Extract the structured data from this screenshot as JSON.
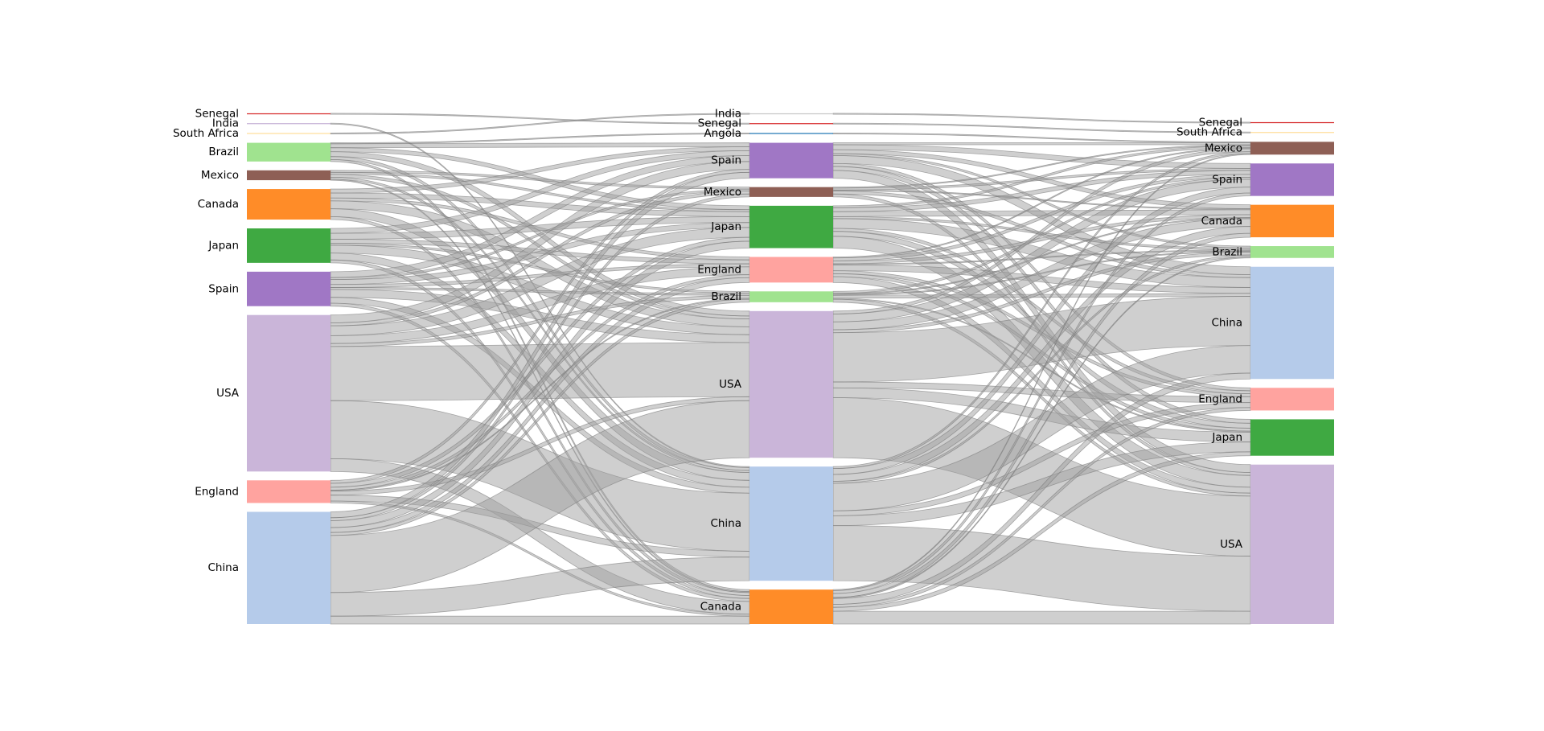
{
  "chart_data": {
    "type": "sankey",
    "columns": [
      {
        "nodes": [
          {
            "label": "Senegal",
            "color": "#d62728",
            "value": 1,
            "to": [
              {
                "node": "Senegal",
                "value": 1
              }
            ]
          },
          {
            "label": "India",
            "color": "#c5b0d5",
            "value": 1,
            "to": [
              {
                "node": "China",
                "value": 1
              }
            ]
          },
          {
            "label": "South Africa",
            "color": "#ffdd99",
            "value": 1,
            "to": [
              {
                "node": "India",
                "value": 1
              }
            ]
          },
          {
            "label": "Brazil",
            "color": "#a0e38f",
            "value": 19,
            "to": [
              {
                "node": "Angola",
                "value": 1
              },
              {
                "node": "Spain",
                "value": 4
              },
              {
                "node": "Japan",
                "value": 4
              },
              {
                "node": "USA",
                "value": 5
              },
              {
                "node": "China",
                "value": 3
              },
              {
                "node": "Canada",
                "value": 2
              }
            ]
          },
          {
            "label": "Mexico",
            "color": "#8e5f55",
            "value": 10,
            "to": [
              {
                "node": "Mexico",
                "value": 2
              },
              {
                "node": "Japan",
                "value": 2
              },
              {
                "node": "USA",
                "value": 3
              },
              {
                "node": "China",
                "value": 2
              },
              {
                "node": "Canada",
                "value": 1
              }
            ]
          },
          {
            "label": "Canada",
            "color": "#ff8c28",
            "value": 31,
            "to": [
              {
                "node": "Spain",
                "value": 4
              },
              {
                "node": "Japan",
                "value": 5
              },
              {
                "node": "England",
                "value": 3
              },
              {
                "node": "USA",
                "value": 8
              },
              {
                "node": "China",
                "value": 8
              },
              {
                "node": "Canada",
                "value": 3
              }
            ]
          },
          {
            "label": "Japan",
            "color": "#3fa942",
            "value": 35,
            "to": [
              {
                "node": "Spain",
                "value": 5
              },
              {
                "node": "Japan",
                "value": 6
              },
              {
                "node": "England",
                "value": 4
              },
              {
                "node": "Brazil",
                "value": 2
              },
              {
                "node": "USA",
                "value": 8
              },
              {
                "node": "China",
                "value": 7
              },
              {
                "node": "Canada",
                "value": 3
              }
            ]
          },
          {
            "label": "Spain",
            "color": "#a077c5",
            "value": 35,
            "to": [
              {
                "node": "Spain",
                "value": 6
              },
              {
                "node": "Mexico",
                "value": 2
              },
              {
                "node": "Japan",
                "value": 5
              },
              {
                "node": "England",
                "value": 3
              },
              {
                "node": "Brazil",
                "value": 2
              },
              {
                "node": "USA",
                "value": 8
              },
              {
                "node": "China",
                "value": 6
              },
              {
                "node": "Canada",
                "value": 3
              }
            ]
          },
          {
            "label": "USA",
            "color": "#cab5d9",
            "value": 159,
            "to": [
              {
                "node": "Spain",
                "value": 8
              },
              {
                "node": "Mexico",
                "value": 3
              },
              {
                "node": "Japan",
                "value": 10
              },
              {
                "node": "England",
                "value": 8
              },
              {
                "node": "Brazil",
                "value": 3
              },
              {
                "node": "USA",
                "value": 55
              },
              {
                "node": "China",
                "value": 59
              },
              {
                "node": "Canada",
                "value": 13
              }
            ]
          },
          {
            "label": "England",
            "color": "#ffa39f",
            "value": 23,
            "to": [
              {
                "node": "Spain",
                "value": 3
              },
              {
                "node": "Japan",
                "value": 4
              },
              {
                "node": "England",
                "value": 3
              },
              {
                "node": "Brazil",
                "value": 1
              },
              {
                "node": "USA",
                "value": 4
              },
              {
                "node": "China",
                "value": 6
              },
              {
                "node": "Canada",
                "value": 2
              }
            ]
          },
          {
            "label": "China",
            "color": "#b5cbea",
            "value": 114,
            "to": [
              {
                "node": "Spain",
                "value": 6
              },
              {
                "node": "Mexico",
                "value": 3
              },
              {
                "node": "Japan",
                "value": 7
              },
              {
                "node": "England",
                "value": 5
              },
              {
                "node": "Brazil",
                "value": 3
              },
              {
                "node": "USA",
                "value": 58
              },
              {
                "node": "China",
                "value": 24
              },
              {
                "node": "Canada",
                "value": 8
              }
            ]
          }
        ]
      },
      {
        "nodes": [
          {
            "label": "India",
            "color": "#c7c7c7",
            "value": 1,
            "to": [
              {
                "node": "Senegal",
                "value": 1
              }
            ]
          },
          {
            "label": "Senegal",
            "color": "#d62728",
            "value": 1,
            "to": [
              {
                "node": "South Africa",
                "value": 1
              }
            ]
          },
          {
            "label": "Angola",
            "color": "#1f77b4",
            "value": 1,
            "to": [
              {
                "node": "Mexico",
                "value": 1
              }
            ]
          },
          {
            "label": "Spain",
            "color": "#a077c5",
            "value": 36,
            "to": [
              {
                "node": "Mexico",
                "value": 2
              },
              {
                "node": "Spain",
                "value": 5
              },
              {
                "node": "Canada",
                "value": 4
              },
              {
                "node": "Brazil",
                "value": 2
              },
              {
                "node": "China",
                "value": 8
              },
              {
                "node": "England",
                "value": 3
              },
              {
                "node": "Japan",
                "value": 4
              },
              {
                "node": "USA",
                "value": 8
              }
            ]
          },
          {
            "label": "Mexico",
            "color": "#8e5f55",
            "value": 10,
            "to": [
              {
                "node": "Mexico",
                "value": 1
              },
              {
                "node": "Spain",
                "value": 2
              },
              {
                "node": "Canada",
                "value": 1
              },
              {
                "node": "China",
                "value": 3
              },
              {
                "node": "USA",
                "value": 3
              }
            ]
          },
          {
            "label": "Japan",
            "color": "#3fa942",
            "value": 43,
            "to": [
              {
                "node": "Mexico",
                "value": 2
              },
              {
                "node": "Spain",
                "value": 4
              },
              {
                "node": "Canada",
                "value": 5
              },
              {
                "node": "Brazil",
                "value": 2
              },
              {
                "node": "China",
                "value": 10
              },
              {
                "node": "England",
                "value": 3
              },
              {
                "node": "Japan",
                "value": 5
              },
              {
                "node": "USA",
                "value": 12
              }
            ]
          },
          {
            "label": "England",
            "color": "#ffa39f",
            "value": 26,
            "to": [
              {
                "node": "Mexico",
                "value": 1
              },
              {
                "node": "Spain",
                "value": 3
              },
              {
                "node": "Canada",
                "value": 3
              },
              {
                "node": "Brazil",
                "value": 1
              },
              {
                "node": "China",
                "value": 6
              },
              {
                "node": "England",
                "value": 3
              },
              {
                "node": "Japan",
                "value": 3
              },
              {
                "node": "USA",
                "value": 6
              }
            ]
          },
          {
            "label": "Brazil",
            "color": "#a0e38f",
            "value": 11,
            "to": [
              {
                "node": "Spain",
                "value": 2
              },
              {
                "node": "Canada",
                "value": 1
              },
              {
                "node": "Brazil",
                "value": 1
              },
              {
                "node": "China",
                "value": 3
              },
              {
                "node": "Japan",
                "value": 1
              },
              {
                "node": "USA",
                "value": 3
              }
            ]
          },
          {
            "label": "USA",
            "color": "#cab5d9",
            "value": 149,
            "to": [
              {
                "node": "Mexico",
                "value": 3
              },
              {
                "node": "Spain",
                "value": 8
              },
              {
                "node": "Canada",
                "value": 8
              },
              {
                "node": "Brazil",
                "value": 3
              },
              {
                "node": "China",
                "value": 50
              },
              {
                "node": "England",
                "value": 6
              },
              {
                "node": "Japan",
                "value": 10
              },
              {
                "node": "USA",
                "value": 61
              }
            ]
          },
          {
            "label": "China",
            "color": "#b5cbea",
            "value": 116,
            "to": [
              {
                "node": "Mexico",
                "value": 2
              },
              {
                "node": "Spain",
                "value": 6
              },
              {
                "node": "Canada",
                "value": 7
              },
              {
                "node": "Brazil",
                "value": 2
              },
              {
                "node": "China",
                "value": 28
              },
              {
                "node": "England",
                "value": 5
              },
              {
                "node": "Japan",
                "value": 10
              },
              {
                "node": "USA",
                "value": 56
              }
            ]
          },
          {
            "label": "Canada",
            "color": "#ff8c28",
            "value": 35,
            "to": [
              {
                "node": "Mexico",
                "value": 1
              },
              {
                "node": "Spain",
                "value": 3
              },
              {
                "node": "Canada",
                "value": 4
              },
              {
                "node": "Brazil",
                "value": 1
              },
              {
                "node": "China",
                "value": 6
              },
              {
                "node": "England",
                "value": 3
              },
              {
                "node": "Japan",
                "value": 4
              },
              {
                "node": "USA",
                "value": 13
              }
            ]
          }
        ]
      },
      {
        "nodes": [
          {
            "label": "Senegal",
            "color": "#d62728",
            "value": 1
          },
          {
            "label": "South Africa",
            "color": "#ffdd99",
            "value": 1
          },
          {
            "label": "Mexico",
            "color": "#8e5f55",
            "value": 13
          },
          {
            "label": "Spain",
            "color": "#a077c5",
            "value": 33
          },
          {
            "label": "Canada",
            "color": "#ff8c28",
            "value": 33
          },
          {
            "label": "Brazil",
            "color": "#a0e38f",
            "value": 12
          },
          {
            "label": "China",
            "color": "#b5cbea",
            "value": 114
          },
          {
            "label": "England",
            "color": "#ffa39f",
            "value": 23
          },
          {
            "label": "Japan",
            "color": "#3fa942",
            "value": 37
          },
          {
            "label": "USA",
            "color": "#cab5d9",
            "value": 162
          }
        ]
      }
    ]
  }
}
